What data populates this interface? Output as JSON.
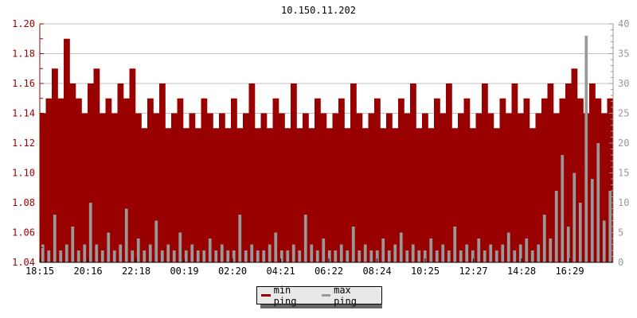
{
  "chart_data": {
    "type": "area",
    "title": "10.150.11.202",
    "x_tick_labels": [
      "18:15",
      "20:16",
      "22:18",
      "00:19",
      "02:20",
      "04:21",
      "06:22",
      "08:24",
      "10:25",
      "12:27",
      "14:28",
      "16:29"
    ],
    "x_start": "18:15",
    "x_step_minutes": 15,
    "left_axis": {
      "ylim": [
        1.04,
        1.2
      ],
      "ticks": [
        "1.04",
        "1.06",
        "1.08",
        "1.10",
        "1.12",
        "1.14",
        "1.16",
        "1.18",
        "1.20"
      ],
      "color": "#990000"
    },
    "right_axis": {
      "ylim": [
        0,
        40
      ],
      "ticks": [
        "0",
        "5",
        "10",
        "15",
        "20",
        "25",
        "30",
        "35",
        "40"
      ],
      "color": "#999999"
    },
    "grid": true,
    "legend_position": "bottom",
    "series": [
      {
        "name": "min ping",
        "axis": "left",
        "color": "#990000",
        "values": [
          1.14,
          1.15,
          1.17,
          1.15,
          1.19,
          1.16,
          1.15,
          1.14,
          1.16,
          1.17,
          1.14,
          1.15,
          1.14,
          1.16,
          1.15,
          1.17,
          1.14,
          1.13,
          1.15,
          1.14,
          1.16,
          1.13,
          1.14,
          1.15,
          1.13,
          1.14,
          1.13,
          1.15,
          1.14,
          1.13,
          1.14,
          1.13,
          1.15,
          1.13,
          1.14,
          1.16,
          1.13,
          1.14,
          1.13,
          1.15,
          1.14,
          1.13,
          1.16,
          1.13,
          1.14,
          1.13,
          1.15,
          1.14,
          1.13,
          1.14,
          1.15,
          1.13,
          1.16,
          1.14,
          1.13,
          1.14,
          1.15,
          1.13,
          1.14,
          1.13,
          1.15,
          1.14,
          1.16,
          1.13,
          1.14,
          1.13,
          1.15,
          1.14,
          1.16,
          1.13,
          1.14,
          1.15,
          1.13,
          1.14,
          1.16,
          1.14,
          1.13,
          1.15,
          1.14,
          1.16,
          1.14,
          1.15,
          1.13,
          1.14,
          1.15,
          1.16,
          1.14,
          1.15,
          1.16,
          1.17,
          1.15,
          1.14,
          1.16,
          1.15,
          1.14,
          1.15
        ]
      },
      {
        "name": "max ping",
        "axis": "right",
        "color": "#999999",
        "values": [
          3,
          2,
          8,
          2,
          3,
          6,
          2,
          3,
          10,
          3,
          2,
          5,
          2,
          3,
          9,
          2,
          4,
          2,
          3,
          7,
          2,
          3,
          2,
          5,
          2,
          3,
          2,
          2,
          4,
          2,
          3,
          2,
          2,
          8,
          2,
          3,
          2,
          2,
          3,
          5,
          2,
          2,
          3,
          2,
          8,
          3,
          2,
          4,
          2,
          2,
          3,
          2,
          6,
          2,
          3,
          2,
          2,
          4,
          2,
          3,
          5,
          2,
          3,
          2,
          2,
          4,
          2,
          3,
          2,
          6,
          2,
          3,
          2,
          4,
          2,
          3,
          2,
          3,
          5,
          2,
          3,
          4,
          2,
          3,
          8,
          4,
          12,
          18,
          6,
          15,
          10,
          38,
          14,
          20,
          7,
          12
        ]
      }
    ]
  }
}
